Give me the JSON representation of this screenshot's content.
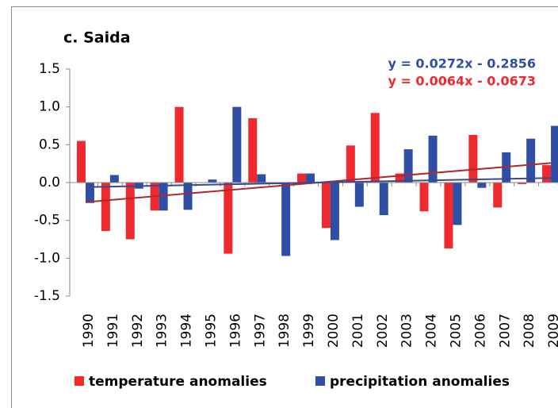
{
  "chart_data": {
    "type": "bar",
    "title": "c. Saida",
    "categories": [
      "1990",
      "1991",
      "1992",
      "1993",
      "1994",
      "1995",
      "1996",
      "1997",
      "1998",
      "1999",
      "2000",
      "2001",
      "2002",
      "2003",
      "2004",
      "2005",
      "2006",
      "2007",
      "2008",
      "2009"
    ],
    "series": [
      {
        "name": "temperature anomalies",
        "color": "#ee2a2f",
        "values": [
          0.55,
          -0.64,
          -0.75,
          -0.37,
          1.0,
          0.0,
          -0.94,
          0.85,
          -0.02,
          0.12,
          -0.6,
          0.49,
          0.92,
          0.12,
          -0.38,
          -0.87,
          0.63,
          -0.33,
          -0.02,
          0.23
        ]
      },
      {
        "name": "precipitation anomalies",
        "color": "#2e4fa3",
        "values": [
          -0.27,
          0.1,
          -0.08,
          -0.37,
          -0.36,
          0.04,
          1.0,
          0.11,
          -0.97,
          0.12,
          -0.76,
          -0.32,
          -0.43,
          0.44,
          0.62,
          -0.56,
          -0.07,
          0.4,
          0.58,
          0.75
        ]
      }
    ],
    "trendlines": [
      {
        "label": "y = 0.0272x - 0.2856",
        "color": "#2e4fa3",
        "line_color": "#b0282e",
        "slope": 0.0272,
        "intercept": -0.2856
      },
      {
        "label": "y = 0.0064x - 0.0673",
        "color": "#ee2a2f",
        "line_color": "#3b4a8a",
        "slope": 0.0064,
        "intercept": -0.0673
      }
    ],
    "ylim": [
      -1.5,
      1.5
    ],
    "yticks": [
      {
        "value": 1.5,
        "label": "1.5"
      },
      {
        "value": 1.0,
        "label": "1.0"
      },
      {
        "value": 0.5,
        "label": "0.5"
      },
      {
        "value": 0.0,
        "label": "0.0"
      },
      {
        "value": -0.5,
        "label": "-0.5"
      },
      {
        "value": -1.0,
        "label": "-1.0"
      },
      {
        "value": -1.5,
        "label": "-1.5"
      }
    ]
  }
}
